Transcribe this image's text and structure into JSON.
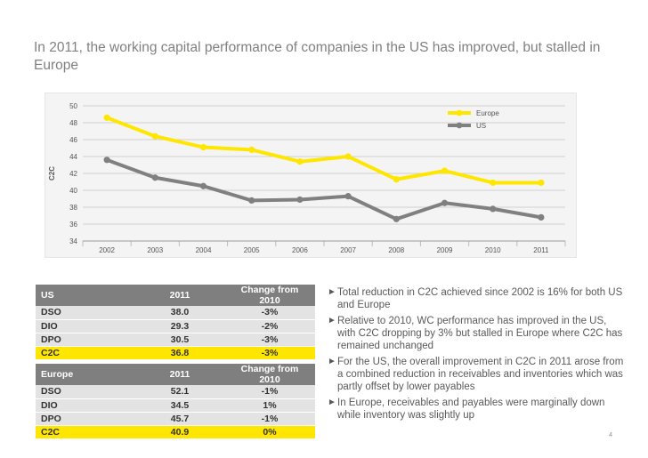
{
  "headline": "In 2011, the working capital performance of companies in the US has improved, but stalled in Europe",
  "chart_data": {
    "type": "line",
    "categories": [
      "2002",
      "2003",
      "2004",
      "2005",
      "2006",
      "2007",
      "2008",
      "2009",
      "2010",
      "2011"
    ],
    "series": [
      {
        "name": "Europe",
        "color": "#ffe600",
        "values": [
          48.6,
          46.4,
          45.1,
          44.8,
          43.4,
          44.0,
          41.3,
          42.3,
          40.9,
          40.9
        ]
      },
      {
        "name": "US",
        "color": "#808080",
        "values": [
          43.6,
          41.5,
          40.5,
          38.8,
          38.9,
          39.3,
          36.6,
          38.5,
          37.8,
          36.8
        ]
      }
    ],
    "ylabel": "C2C",
    "ylim": [
      34,
      50
    ],
    "yticks": [
      "34",
      "36",
      "38",
      "40",
      "42",
      "44",
      "46",
      "48",
      "50"
    ],
    "grid": true,
    "legend_position": "top-right"
  },
  "table_us": {
    "header": [
      "US",
      "2011",
      "Change from 2010"
    ],
    "rows": [
      {
        "label": "DSO",
        "value": "38.0",
        "change": "-3%"
      },
      {
        "label": "DIO",
        "value": "29.3",
        "change": "-2%"
      },
      {
        "label": "DPO",
        "value": "30.5",
        "change": "-3%"
      },
      {
        "label": "C2C",
        "value": "36.8",
        "change": "-3%"
      }
    ]
  },
  "table_europe": {
    "header": [
      "Europe",
      "2011",
      "Change from 2010"
    ],
    "rows": [
      {
        "label": "DSO",
        "value": "52.1",
        "change": "-1%"
      },
      {
        "label": "DIO",
        "value": "34.5",
        "change": "1%"
      },
      {
        "label": "DPO",
        "value": "45.7",
        "change": "-1%"
      },
      {
        "label": "C2C",
        "value": "40.9",
        "change": "0%"
      }
    ]
  },
  "highlight_color": "#ffe600",
  "bullets": [
    "Total reduction in C2C achieved since 2002 is 16% for both US and Europe",
    "Relative to 2010, WC performance has improved in the US, with C2C dropping by 3% but stalled in Europe where C2C has remained unchanged",
    "For the US, the overall improvement in C2C in 2011 arose from a combined reduction in receivables and inventories which was partly offset by lower payables",
    "In Europe, receivables and payables were marginally down while inventory was slightly up"
  ],
  "bullet_arrow": "►",
  "page_number": "4"
}
